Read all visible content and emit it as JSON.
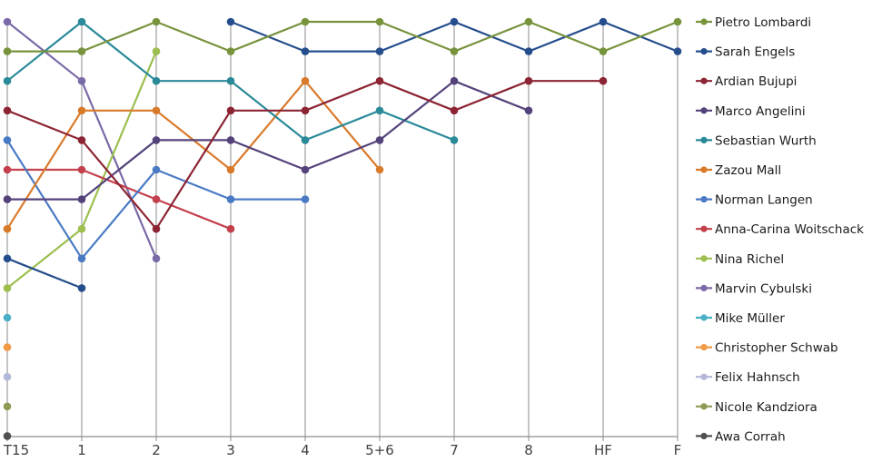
{
  "chart_data": {
    "type": "line",
    "title": "",
    "xlabel": "",
    "ylabel": "",
    "y_meaning": "rank (1 = top, 15 = bottom), inverted axis, no tick labels",
    "ylim": [
      1,
      15
    ],
    "grid": "vertical lines at each category",
    "legend_position": "right",
    "categories": [
      "T15",
      "1",
      "2",
      "3",
      "4",
      "5+6",
      "7",
      "8",
      "HF",
      "F"
    ],
    "series": [
      {
        "name": "Pietro Lombardi",
        "color": "#77933c",
        "values": [
          2,
          2,
          1,
          2,
          1,
          1,
          2,
          1,
          2,
          1
        ]
      },
      {
        "name": "Sarah Engels",
        "color": "#254d8c",
        "values": [
          9,
          10,
          null,
          1,
          2,
          2,
          1,
          2,
          1,
          2
        ]
      },
      {
        "name": "Ardian Bujupi",
        "color": "#8c2433",
        "values": [
          4,
          5,
          8,
          4,
          4,
          3,
          4,
          3,
          3,
          null
        ]
      },
      {
        "name": "Marco Angelini",
        "color": "#54427a",
        "values": [
          7,
          7,
          5,
          5,
          6,
          5,
          3,
          4,
          null,
          null
        ]
      },
      {
        "name": "Sebastian Wurth",
        "color": "#2a8a99",
        "values": [
          3,
          1,
          3,
          3,
          5,
          4,
          5,
          null,
          null,
          null
        ]
      },
      {
        "name": "Zazou Mall",
        "color": "#d97a2b",
        "values": [
          8,
          4,
          4,
          6,
          3,
          6,
          null,
          null,
          null,
          null
        ]
      },
      {
        "name": "Norman Langen",
        "color": "#4a7ac4",
        "values": [
          5,
          9,
          6,
          7,
          7,
          null,
          null,
          null,
          null,
          null
        ]
      },
      {
        "name": "Anna-Carina Woitschack",
        "color": "#c4404d",
        "values": [
          6,
          6,
          7,
          8,
          null,
          null,
          null,
          null,
          null,
          null
        ]
      },
      {
        "name": "Nina Richel",
        "color": "#9cbf4f",
        "values": [
          10,
          8,
          2,
          null,
          null,
          null,
          null,
          null,
          null,
          null
        ]
      },
      {
        "name": "Marvin Cybulski",
        "color": "#7b6aa8",
        "values": [
          1,
          3,
          9,
          null,
          null,
          null,
          null,
          null,
          null,
          null
        ]
      },
      {
        "name": "Mike Müller",
        "color": "#4aaec7",
        "values": [
          11,
          null,
          null,
          null,
          null,
          null,
          null,
          null,
          null,
          null
        ]
      },
      {
        "name": "Christopher Schwab",
        "color": "#f39a46",
        "values": [
          12,
          null,
          null,
          null,
          null,
          null,
          null,
          null,
          null,
          null
        ]
      },
      {
        "name": "Felix Hahnsch",
        "color": "#b3b8d9",
        "values": [
          13,
          null,
          null,
          null,
          null,
          null,
          null,
          null,
          null,
          null
        ]
      },
      {
        "name": "Nicole Kandziora",
        "color": "#8f9a52",
        "values": [
          14,
          null,
          null,
          null,
          null,
          null,
          null,
          null,
          null,
          null
        ]
      },
      {
        "name": "Awa Corrah",
        "color": "#505050",
        "values": [
          15,
          null,
          null,
          null,
          null,
          null,
          null,
          null,
          null,
          null
        ]
      }
    ]
  },
  "layout": {
    "gridline_color": "#a6a6a6",
    "axis_color": "#8c8c8c"
  }
}
